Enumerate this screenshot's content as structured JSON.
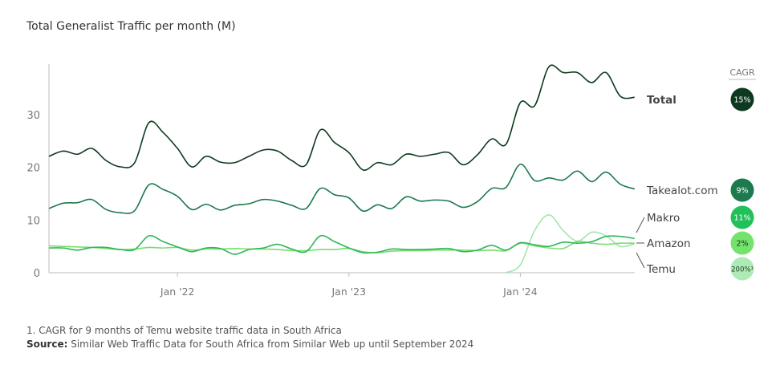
{
  "chart_data": {
    "type": "line",
    "title": "Total Generalist Traffic per month (M)",
    "x": [
      "2021-04",
      "2021-05",
      "2021-06",
      "2021-07",
      "2021-08",
      "2021-09",
      "2021-10",
      "2021-11",
      "2021-12",
      "2022-01",
      "2022-02",
      "2022-03",
      "2022-04",
      "2022-05",
      "2022-06",
      "2022-07",
      "2022-08",
      "2022-09",
      "2022-10",
      "2022-11",
      "2022-12",
      "2023-01",
      "2023-02",
      "2023-03",
      "2023-04",
      "2023-05",
      "2023-06",
      "2023-07",
      "2023-08",
      "2023-09",
      "2023-10",
      "2023-11",
      "2023-12",
      "2024-01",
      "2024-02",
      "2024-03",
      "2024-04",
      "2024-05",
      "2024-06",
      "2024-07",
      "2024-08",
      "2024-09"
    ],
    "xticks": [
      {
        "x": "2022-01",
        "label": "Jan '22"
      },
      {
        "x": "2023-01",
        "label": "Jan '23"
      },
      {
        "x": "2024-01",
        "label": "Jan '24"
      }
    ],
    "yticks": [
      0,
      10,
      20,
      30
    ],
    "ylim": [
      0,
      40
    ],
    "grid": false,
    "legend_title": "CAGR",
    "series": [
      {
        "name": "Total",
        "bold": true,
        "color": "#0d3a1e",
        "cagr": "15%",
        "badge_color": "#0d3a1e",
        "badge_text": "#ffffff",
        "values": [
          22.1,
          23.1,
          22.5,
          23.6,
          21.3,
          20.1,
          20.9,
          28.5,
          26.6,
          23.6,
          20.1,
          22.1,
          21.0,
          20.9,
          22.1,
          23.3,
          23.1,
          21.3,
          20.5,
          27.1,
          24.7,
          22.8,
          19.5,
          20.9,
          20.5,
          22.5,
          22.1,
          22.5,
          22.8,
          20.5,
          22.4,
          25.4,
          24.4,
          32.3,
          31.7,
          39.1,
          38.0,
          38.0,
          36.1,
          38.0,
          33.5,
          33.3
        ]
      },
      {
        "name": "Takealot.com",
        "color": "#1d7a4e",
        "cagr": "9%",
        "badge_color": "#1d7a4e",
        "badge_text": "#ffffff",
        "values": [
          12.2,
          13.2,
          13.3,
          13.9,
          12.0,
          11.4,
          11.8,
          16.7,
          15.8,
          14.5,
          12.0,
          13.0,
          11.9,
          12.8,
          13.1,
          13.9,
          13.6,
          12.8,
          12.2,
          16.0,
          14.8,
          14.2,
          11.7,
          12.9,
          12.2,
          14.4,
          13.6,
          13.8,
          13.6,
          12.4,
          13.5,
          16.0,
          16.2,
          20.6,
          17.5,
          18.0,
          17.6,
          19.3,
          17.3,
          19.1,
          16.8,
          15.9
        ]
      },
      {
        "name": "Makro",
        "color": "#2fb65a",
        "cagr": "11%",
        "badge_color": "#22c05a",
        "badge_text": "#ffffff",
        "values": [
          4.7,
          4.7,
          4.3,
          4.8,
          4.8,
          4.4,
          4.4,
          7.0,
          5.9,
          4.9,
          4.0,
          4.7,
          4.6,
          3.5,
          4.4,
          4.7,
          5.4,
          4.5,
          4.0,
          7.0,
          5.9,
          4.7,
          3.8,
          3.9,
          4.5,
          4.4,
          4.4,
          4.5,
          4.6,
          4.0,
          4.3,
          5.2,
          4.3,
          5.7,
          5.3,
          5.0,
          5.8,
          5.6,
          5.9,
          6.9,
          6.9,
          6.5
        ]
      },
      {
        "name": "Amazon",
        "color": "#79de6a",
        "cagr": "2%",
        "badge_color": "#74e26c",
        "badge_text": "#1a3a1a",
        "values": [
          5.1,
          5.0,
          4.9,
          4.8,
          4.6,
          4.4,
          4.5,
          4.8,
          4.7,
          4.8,
          4.3,
          4.5,
          4.5,
          4.6,
          4.5,
          4.5,
          4.4,
          4.2,
          4.2,
          4.4,
          4.4,
          4.6,
          4.0,
          3.8,
          4.1,
          4.2,
          4.2,
          4.3,
          4.3,
          4.3,
          4.2,
          4.3,
          4.2,
          5.6,
          5.1,
          4.7,
          4.6,
          5.9,
          5.6,
          5.4,
          5.6,
          5.6
        ]
      },
      {
        "name": "Temu",
        "color": "#a3e6ad",
        "cagr": "200%¹",
        "badge_color": "#aeeab6",
        "badge_text": "#1a3a1a",
        "values": [
          null,
          null,
          null,
          null,
          null,
          null,
          null,
          null,
          null,
          null,
          null,
          null,
          null,
          null,
          null,
          null,
          null,
          null,
          null,
          null,
          null,
          null,
          null,
          null,
          null,
          null,
          null,
          null,
          null,
          null,
          null,
          null,
          0,
          1.5,
          8.0,
          11.0,
          8.0,
          6.0,
          7.7,
          7.0,
          5.0,
          5.5
        ]
      }
    ]
  },
  "footnote": "1. CAGR for 9 months of Temu website traffic data in South Africa",
  "source_label": "Source:",
  "source_text": " Similar Web Traffic Data for South Africa from Similar Web up until September 2024"
}
